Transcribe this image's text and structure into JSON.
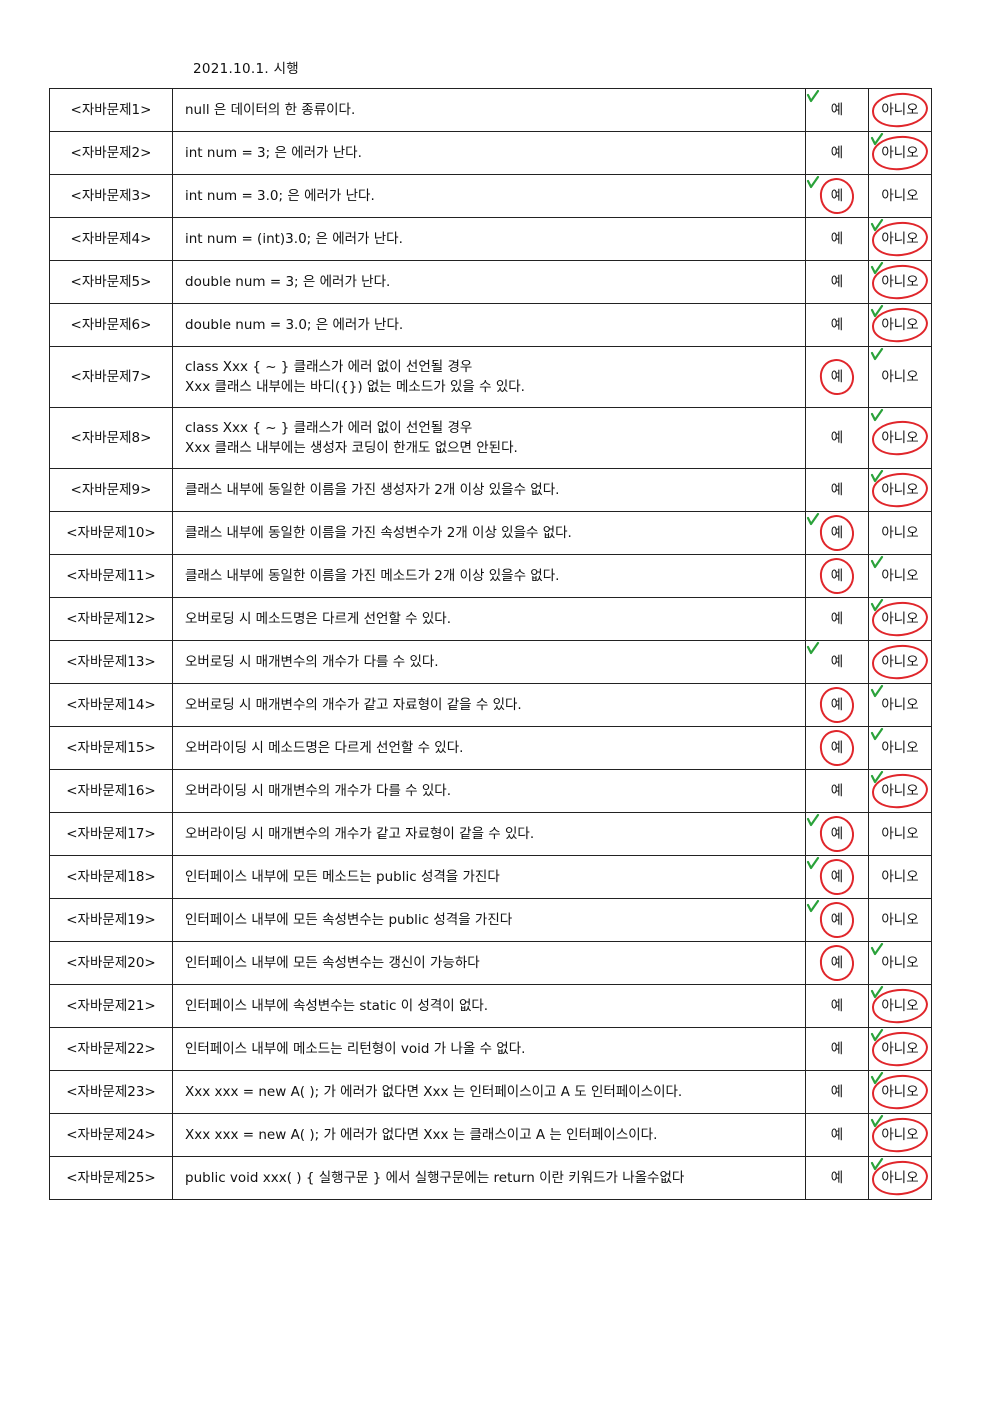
{
  "header": {
    "date": "2021.10.1. 시행"
  },
  "columns": {
    "yes_label": "예",
    "no_label": "아니오"
  },
  "colors": {
    "circle": "#e0262b",
    "check": "#2aa23a"
  },
  "questions": [
    {
      "id": "<자바문제1>",
      "lines": [
        "null 은 데이터의 한 종류이다."
      ],
      "circled": "no",
      "checked": "yes"
    },
    {
      "id": "<자바문제2>",
      "lines": [
        "int num = 3; 은 에러가 난다."
      ],
      "circled": "no",
      "checked": "no"
    },
    {
      "id": "<자바문제3>",
      "lines": [
        "int num = 3.0; 은 에러가 난다."
      ],
      "circled": "yes",
      "checked": "yes"
    },
    {
      "id": "<자바문제4>",
      "lines": [
        "int num = (int)3.0; 은 에러가 난다."
      ],
      "circled": "no",
      "checked": "no"
    },
    {
      "id": "<자바문제5>",
      "lines": [
        "double num = 3; 은 에러가 난다."
      ],
      "circled": "no",
      "checked": "no"
    },
    {
      "id": "<자바문제6>",
      "lines": [
        "double num = 3.0; 은 에러가 난다."
      ],
      "circled": "no",
      "checked": "no"
    },
    {
      "id": "<자바문제7>",
      "lines": [
        "class Xxx { ~ } 클래스가 에러 없이 선언될 경우",
        "Xxx 클래스 내부에는 바디({}) 없는 메소드가 있을 수 있다."
      ],
      "circled": "yes",
      "checked": "no"
    },
    {
      "id": "<자바문제8>",
      "lines": [
        "class Xxx { ~ } 클래스가 에러 없이 선언될 경우",
        "Xxx 클래스 내부에는 생성자 코딩이 한개도 없으면 안된다."
      ],
      "circled": "no",
      "checked": "no"
    },
    {
      "id": "<자바문제9>",
      "lines": [
        "클래스 내부에 동일한 이름을 가진 생성자가 2개 이상 있을수 없다."
      ],
      "circled": "no",
      "checked": "no"
    },
    {
      "id": "<자바문제10>",
      "lines": [
        "클래스 내부에 동일한 이름을 가진 속성변수가 2개 이상 있을수 없다."
      ],
      "circled": "yes",
      "checked": "yes"
    },
    {
      "id": "<자바문제11>",
      "lines": [
        "클래스 내부에 동일한 이름을 가진 메소드가 2개 이상 있을수 없다."
      ],
      "circled": "yes",
      "checked": "no"
    },
    {
      "id": "<자바문제12>",
      "lines": [
        "오버로딩 시 메소드명은 다르게 선언할 수 있다."
      ],
      "circled": "no",
      "checked": "no"
    },
    {
      "id": "<자바문제13>",
      "lines": [
        "오버로딩 시 매개변수의 개수가 다를 수 있다."
      ],
      "circled": "no",
      "checked": "yes"
    },
    {
      "id": "<자바문제14>",
      "lines": [
        "오버로딩 시 매개변수의 개수가 같고 자료형이 같을 수 있다."
      ],
      "circled": "yes",
      "checked": "no"
    },
    {
      "id": "<자바문제15>",
      "lines": [
        "오버라이딩 시 메소드명은 다르게 선언할 수 있다."
      ],
      "circled": "yes",
      "checked": "no"
    },
    {
      "id": "<자바문제16>",
      "lines": [
        "오버라이딩 시 매개변수의 개수가 다를 수 있다."
      ],
      "circled": "no",
      "checked": "no"
    },
    {
      "id": "<자바문제17>",
      "lines": [
        "오버라이딩 시 매개변수의 개수가 같고 자료형이 같을 수 있다."
      ],
      "circled": "yes",
      "checked": "yes"
    },
    {
      "id": "<자바문제18>",
      "lines": [
        "인터페이스 내부에 모든 메소드는 public 성격을 가진다"
      ],
      "circled": "yes",
      "checked": "yes"
    },
    {
      "id": "<자바문제19>",
      "lines": [
        "인터페이스 내부에 모든 속성변수는 public 성격을 가진다"
      ],
      "circled": "yes",
      "checked": "yes"
    },
    {
      "id": "<자바문제20>",
      "lines": [
        "인터페이스 내부에 모든 속성변수는 갱신이 가능하다"
      ],
      "circled": "yes",
      "checked": "no"
    },
    {
      "id": "<자바문제21>",
      "lines": [
        "인터페이스 내부에 속성변수는 static 이 성격이 없다."
      ],
      "circled": "no",
      "checked": "no"
    },
    {
      "id": "<자바문제22>",
      "lines": [
        "인터페이스 내부에 메소드는 리턴형이 void 가 나올 수 없다."
      ],
      "circled": "no",
      "checked": "no"
    },
    {
      "id": "<자바문제23>",
      "lines": [
        "Xxx xxx = new A( ); 가 에러가 없다면 Xxx 는 인터페이스이고 A 도 인터페이스이다."
      ],
      "circled": "no",
      "checked": "no"
    },
    {
      "id": "<자바문제24>",
      "lines": [
        "Xxx xxx = new A( ); 가 에러가 없다면 Xxx 는 클래스이고 A 는 인터페이스이다."
      ],
      "circled": "no",
      "checked": "no"
    },
    {
      "id": "<자바문제25>",
      "lines": [
        "public void xxx( ) { 실행구문 } 에서 실행구문에는 return 이란 키워드가 나올수없다"
      ],
      "circled": "no",
      "checked": "no"
    }
  ]
}
